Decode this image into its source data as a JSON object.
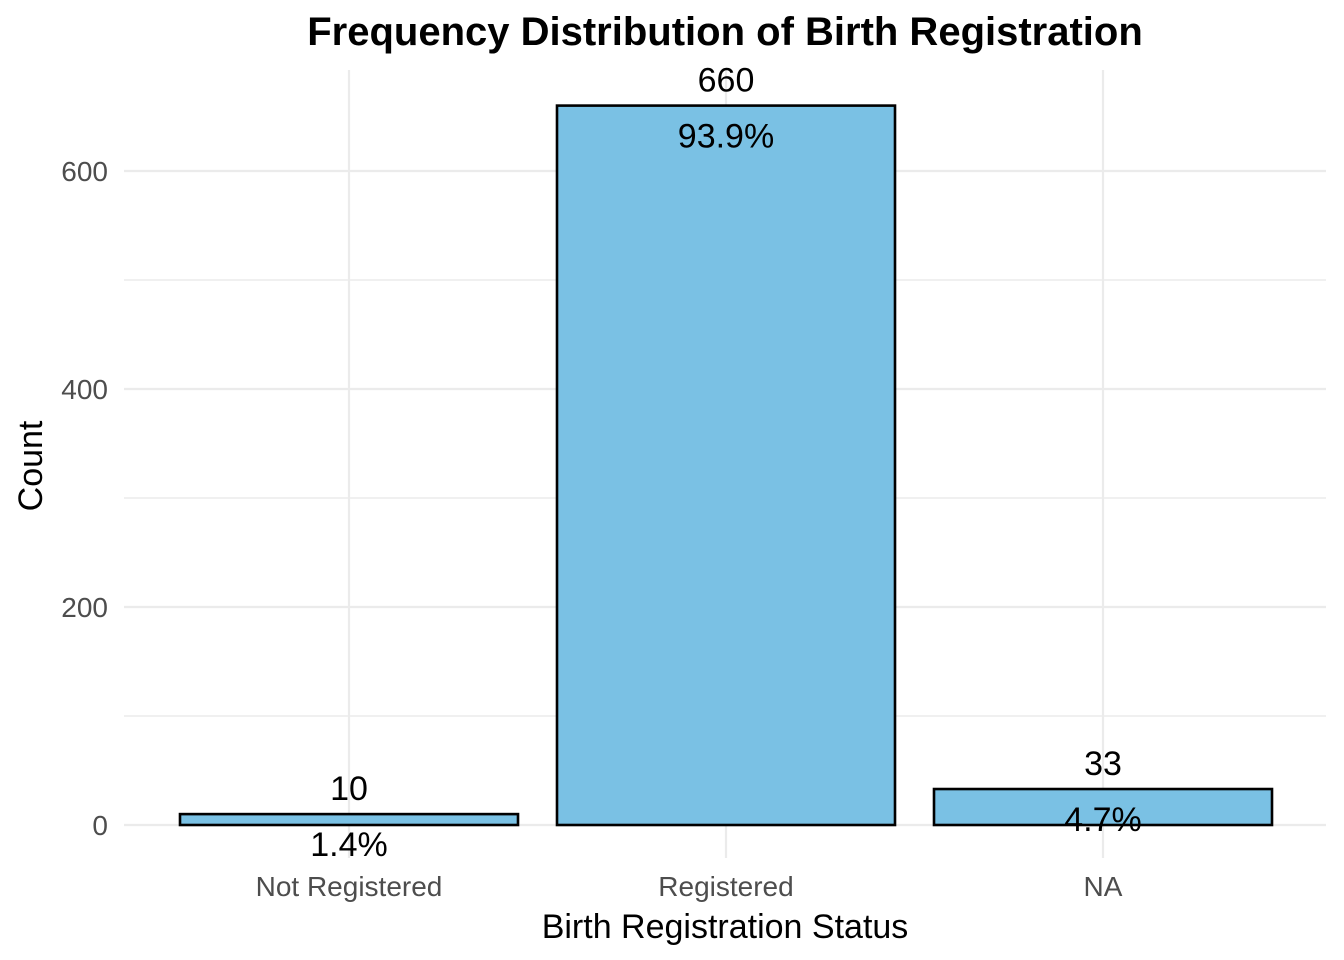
{
  "chart_data": {
    "type": "bar",
    "title": "Frequency Distribution of Birth Registration",
    "xlabel": "Birth Registration Status",
    "ylabel": "Count",
    "categories": [
      "Not Registered",
      "Registered",
      "NA"
    ],
    "values": [
      10,
      660,
      33
    ],
    "percent_labels": [
      "1.4%",
      "93.9%",
      "4.7%"
    ],
    "ylim": [
      0,
      690
    ],
    "y_ticks": [
      0,
      200,
      400,
      600
    ],
    "grid": true,
    "legend": "none",
    "bar_color": "#7AC1E4",
    "bar_outline_color": "#000000"
  }
}
